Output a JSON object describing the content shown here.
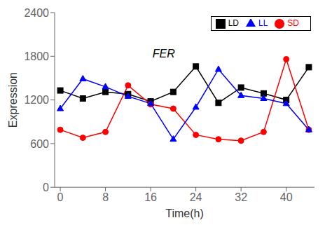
{
  "chart_data": {
    "type": "line",
    "xlabel": "Time(h)",
    "ylabel": "Expression",
    "annotation": "FER",
    "x": [
      0,
      4,
      8,
      12,
      16,
      20,
      24,
      28,
      32,
      36,
      40,
      44
    ],
    "series": [
      {
        "name": "LD",
        "color": "#000000",
        "marker": "square",
        "values": [
          1330,
          1220,
          1310,
          1280,
          1180,
          1310,
          1660,
          1160,
          1370,
          1290,
          1200,
          1650
        ]
      },
      {
        "name": "SD",
        "color": "#ff0000",
        "marker": "circle",
        "values": [
          790,
          680,
          760,
          1400,
          1140,
          1080,
          720,
          660,
          640,
          760,
          1760,
          790
        ]
      },
      {
        "name": "LL",
        "color": "#0000ff",
        "marker": "triangle",
        "values": [
          1080,
          1490,
          1380,
          1250,
          1150,
          660,
          1100,
          1620,
          1260,
          1220,
          1150,
          790
        ]
      }
    ],
    "xlim": [
      -1,
      45
    ],
    "ylim": [
      0,
      2400
    ],
    "xticks": [
      0,
      8,
      16,
      24,
      32,
      40
    ],
    "yticks": [
      0,
      600,
      1200,
      1800,
      2400
    ],
    "legend": "upper right",
    "grid": false
  }
}
